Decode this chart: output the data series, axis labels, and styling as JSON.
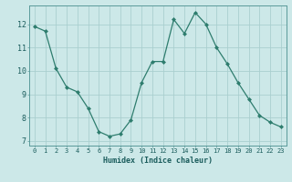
{
  "x": [
    0,
    1,
    2,
    3,
    4,
    5,
    6,
    7,
    8,
    9,
    10,
    11,
    12,
    13,
    14,
    15,
    16,
    17,
    18,
    19,
    20,
    21,
    22,
    23
  ],
  "y": [
    11.9,
    11.7,
    10.1,
    9.3,
    9.1,
    8.4,
    7.4,
    7.2,
    7.3,
    7.9,
    9.5,
    10.4,
    10.4,
    12.2,
    11.6,
    12.5,
    12.0,
    11.0,
    10.3,
    9.5,
    8.8,
    8.1,
    7.8,
    7.6
  ],
  "xlabel": "Humidex (Indice chaleur)",
  "ylabel": "",
  "ylim": [
    6.8,
    12.8
  ],
  "xlim": [
    -0.5,
    23.5
  ],
  "yticks": [
    7,
    8,
    9,
    10,
    11,
    12
  ],
  "xticks": [
    0,
    1,
    2,
    3,
    4,
    5,
    6,
    7,
    8,
    9,
    10,
    11,
    12,
    13,
    14,
    15,
    16,
    17,
    18,
    19,
    20,
    21,
    22,
    23
  ],
  "line_color": "#2e7d6e",
  "marker_color": "#2e7d6e",
  "bg_color": "#cce8e8",
  "grid_color": "#aacfcf",
  "tick_label_color": "#1a5c5c",
  "label_color": "#1a5c5c",
  "tick_fontsize": 5.0,
  "xlabel_fontsize": 6.0
}
